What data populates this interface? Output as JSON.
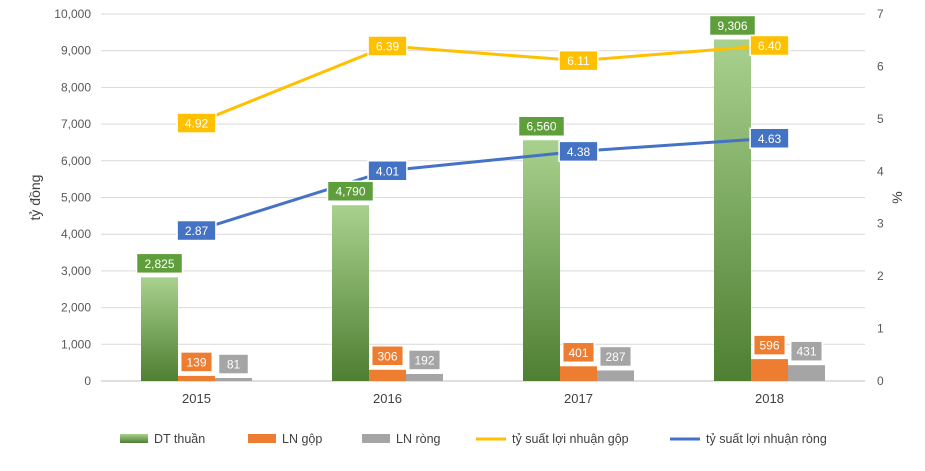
{
  "chart_data": {
    "type": "bar",
    "categories": [
      "2015",
      "2016",
      "2017",
      "2018"
    ],
    "ylabel": "tỷ đồng",
    "y2label": "%",
    "ylim": [
      0,
      10000
    ],
    "y2lim": [
      0,
      7
    ],
    "y_ticks": [
      "0",
      "1,000",
      "2,000",
      "3,000",
      "4,000",
      "5,000",
      "6,000",
      "7,000",
      "8,000",
      "9,000",
      "10,000"
    ],
    "y2_ticks": [
      "0",
      "1",
      "2",
      "3",
      "4",
      "5",
      "6",
      "7"
    ],
    "grid": true,
    "legend_position": "bottom",
    "series": [
      {
        "name": "DT thuần",
        "kind": "bar",
        "axis": "left",
        "color": "#70AD47",
        "values": [
          2825,
          4790,
          6560,
          9306
        ],
        "labels": [
          "2,825",
          "4,790",
          "6,560",
          "9,306"
        ]
      },
      {
        "name": "LN gộp",
        "kind": "bar",
        "axis": "left",
        "color": "#ED7D31",
        "values": [
          139,
          306,
          401,
          596
        ],
        "labels": [
          "139",
          "306",
          "401",
          "596"
        ]
      },
      {
        "name": "LN ròng",
        "kind": "bar",
        "axis": "left",
        "color": "#A5A5A5",
        "values": [
          81,
          192,
          287,
          431
        ],
        "labels": [
          "81",
          "192",
          "287",
          "431"
        ]
      },
      {
        "name": "tỷ suất lợi nhuận gộp",
        "kind": "line",
        "axis": "right",
        "color": "#FFC000",
        "values": [
          4.92,
          6.39,
          6.11,
          6.4
        ],
        "labels": [
          "4.92",
          "6.39",
          "6.11",
          "6.40"
        ]
      },
      {
        "name": "tỷ suất lợi nhuận ròng",
        "kind": "line",
        "axis": "right",
        "color": "#4472C4",
        "values": [
          2.87,
          4.01,
          4.38,
          4.63
        ],
        "labels": [
          "2.87",
          "4.01",
          "4.38",
          "4.63"
        ]
      }
    ]
  }
}
